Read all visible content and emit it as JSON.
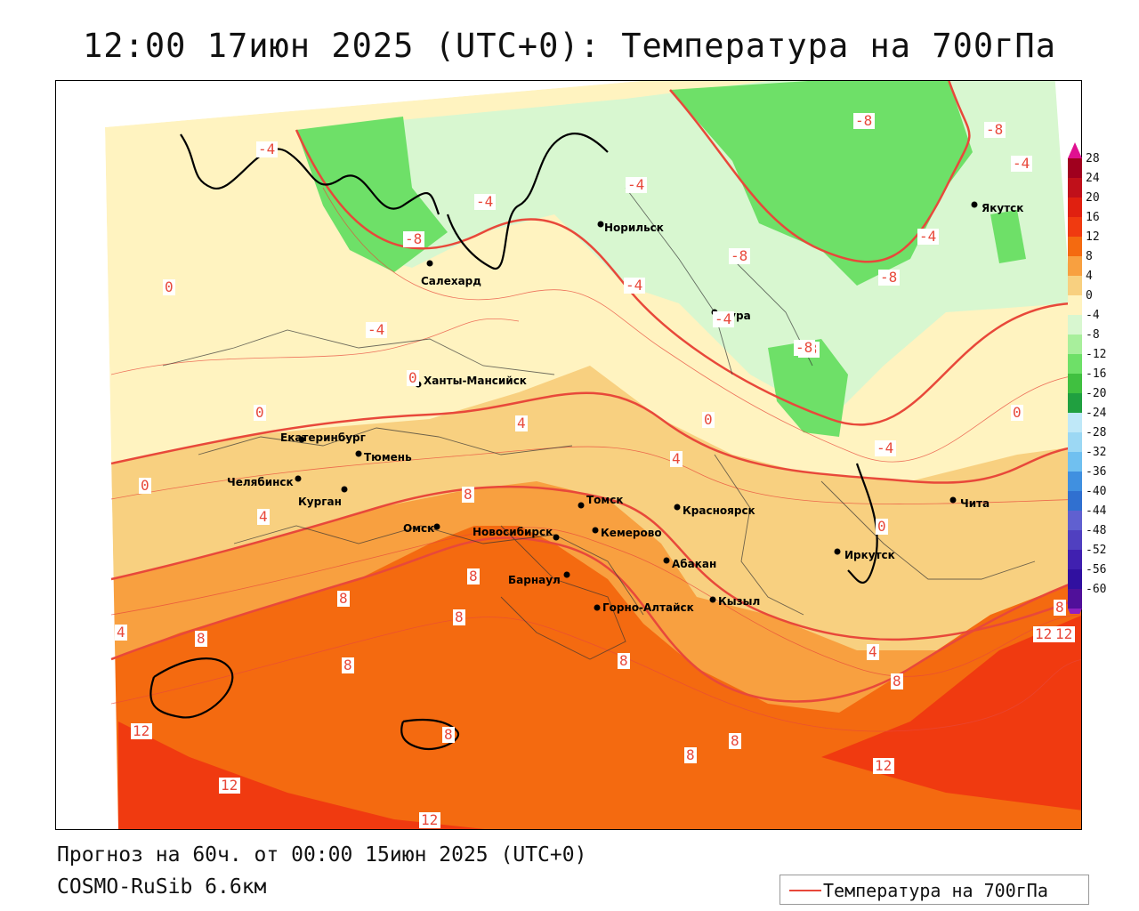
{
  "title": "12:00 17июн 2025 (UTC+0): Температура на 700гПа",
  "footer": {
    "forecast": "Прогноз на 60ч. от 00:00 15июн 2025 (UTC+0)",
    "model": "COSMO-RuSib 6.6км"
  },
  "legend": {
    "line_label": "Температура на 700гПа",
    "line_color": "#e8483a"
  },
  "colorbar": {
    "labels": [
      "28",
      "24",
      "20",
      "16",
      "12",
      "8",
      "4",
      "0",
      "-4",
      "-8",
      "-12",
      "-16",
      "-20",
      "-24",
      "-28",
      "-32",
      "-36",
      "-40",
      "-44",
      "-48",
      "-52",
      "-56",
      "-60"
    ],
    "colors": [
      "#a0001e",
      "#c0101a",
      "#e02010",
      "#f03a10",
      "#f46a10",
      "#f8a040",
      "#f8d080",
      "#fff3c0",
      "#d8f7d0",
      "#a8ef9c",
      "#6ee068",
      "#40c040",
      "#20a040",
      "#bfe8f8",
      "#9cd8f4",
      "#70c0f0",
      "#4090e0",
      "#3070d0",
      "#6060d0",
      "#5040c0",
      "#4020b0",
      "#3010a0",
      "#50109a"
    ],
    "top_color": "#e01090",
    "bottom_color": "#9020c0"
  },
  "cities": [
    {
      "name": "Салехард"
    },
    {
      "name": "Норильск"
    },
    {
      "name": "Якутск"
    },
    {
      "name": "Тура"
    },
    {
      "name": "Ханты-Мансийск"
    },
    {
      "name": "Екатеринбург"
    },
    {
      "name": "Тюмень"
    },
    {
      "name": "Челябинск"
    },
    {
      "name": "Курган"
    },
    {
      "name": "Омск"
    },
    {
      "name": "Новосибирск"
    },
    {
      "name": "Томск"
    },
    {
      "name": "Кемерово"
    },
    {
      "name": "Красноярск"
    },
    {
      "name": "Абакан"
    },
    {
      "name": "Барнаул"
    },
    {
      "name": "Горно-Алтайск"
    },
    {
      "name": "Кызыл"
    },
    {
      "name": "Иркутск"
    },
    {
      "name": "Чита"
    }
  ],
  "contour_labels": [
    "-8",
    "-8",
    "-4",
    "-4",
    "-4",
    "-4",
    "-8",
    "-4",
    "-8",
    "-4",
    "-8",
    "-8",
    "-4",
    "-8",
    "0",
    "-4",
    "0",
    "0",
    "0",
    "0",
    "4",
    "4",
    "-4",
    "0",
    "4",
    "0",
    "8",
    "8",
    "8",
    "8",
    "8",
    "8",
    "4",
    "8",
    "8",
    "12",
    "12",
    "12",
    "12",
    "12",
    "4",
    "8",
    "8",
    "8",
    "8",
    "12"
  ]
}
